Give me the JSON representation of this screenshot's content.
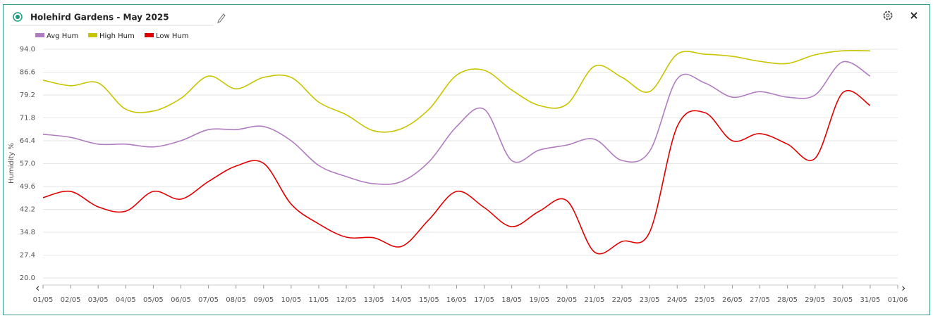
{
  "chart_data": {
    "type": "line",
    "title": "Holehird Gardens - May 2025",
    "ylabel": "Humidity %",
    "x": [
      "01/05",
      "02/05",
      "03/05",
      "04/05",
      "05/05",
      "06/05",
      "07/05",
      "08/05",
      "09/05",
      "10/05",
      "11/05",
      "12/05",
      "13/05",
      "14/05",
      "15/05",
      "16/05",
      "17/05",
      "18/05",
      "19/05",
      "20/05",
      "21/05",
      "22/05",
      "23/05",
      "24/05",
      "25/05",
      "26/05",
      "27/05",
      "28/05",
      "29/05",
      "30/05",
      "31/05",
      "01/06"
    ],
    "series": [
      {
        "name": "Avg Hum",
        "color": "#b07cc0",
        "values": [
          66.5,
          65.5,
          63.3,
          63.3,
          62.4,
          64.4,
          68.0,
          68.0,
          69.0,
          64.4,
          56.4,
          52.8,
          50.5,
          51.2,
          57.6,
          69.0,
          74.6,
          58.0,
          61.4,
          63.0,
          64.9,
          58.0,
          61.0,
          84.4,
          83.1,
          78.5,
          80.3,
          78.5,
          79.2,
          89.9,
          85.3,
          null
        ]
      },
      {
        "name": "High Hum",
        "color": "#c8c400",
        "values": [
          84.0,
          82.2,
          83.1,
          74.6,
          74.0,
          78.1,
          85.3,
          81.2,
          84.9,
          84.9,
          76.9,
          72.8,
          67.6,
          68.3,
          74.6,
          85.6,
          87.2,
          80.8,
          75.8,
          76.2,
          88.5,
          84.9,
          80.3,
          92.4,
          92.4,
          91.7,
          90.1,
          89.4,
          92.2,
          93.5,
          93.5,
          null
        ]
      },
      {
        "name": "Low Hum",
        "color": "#e00000",
        "values": [
          46.0,
          48.0,
          43.0,
          41.6,
          48.0,
          45.5,
          51.2,
          56.2,
          57.1,
          43.9,
          37.5,
          33.2,
          33.0,
          30.2,
          38.9,
          48.0,
          42.8,
          36.6,
          41.6,
          45.0,
          28.4,
          31.8,
          34.8,
          69.0,
          73.5,
          64.4,
          66.7,
          63.3,
          58.7,
          79.9,
          75.8,
          null
        ]
      }
    ],
    "ylim": [
      20,
      94
    ],
    "yticks": [
      {
        "value": 20,
        "label": "20.0"
      },
      27.4,
      34.8,
      42.2,
      49.6,
      {
        "value": 57,
        "label": "57.0"
      },
      64.4,
      71.8,
      79.2,
      86.6,
      {
        "value": 94,
        "label": "94.0"
      }
    ],
    "grid": true
  }
}
